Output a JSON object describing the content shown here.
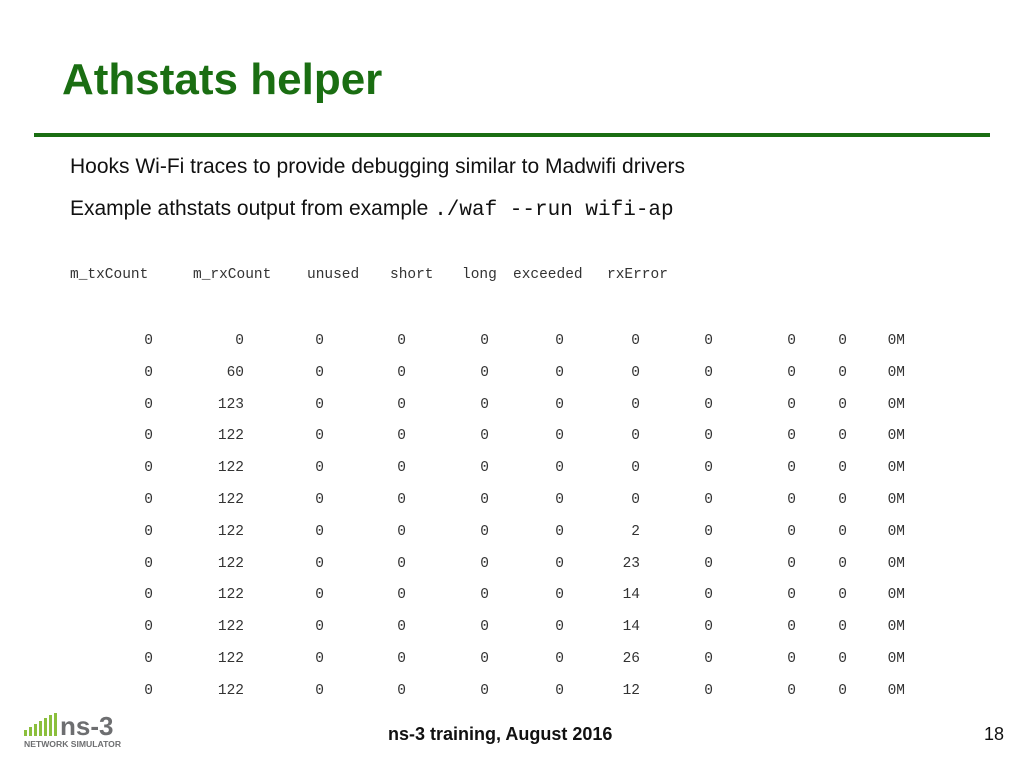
{
  "slide": {
    "title": "Athstats helper",
    "bullet1": "Hooks Wi-Fi traces to provide debugging similar to Madwifi drivers",
    "bullet2_text": "Example athstats output from example ",
    "bullet2_code": "./waf --run wifi-ap",
    "footer": "ns-3 training, August 2016",
    "page_number": "18"
  },
  "logo": {
    "name": "ns-3",
    "subtitle": "NETWORK SIMULATOR"
  },
  "output_header": [
    "m_txCount",
    "m_rxCount",
    "unused",
    "short",
    "long",
    "exceeded",
    "rxError"
  ],
  "output_rows": [
    [
      "0",
      "0",
      "0",
      "0",
      "0",
      "0",
      "0",
      "0",
      "0",
      "0",
      "0M"
    ],
    [
      "0",
      "60",
      "0",
      "0",
      "0",
      "0",
      "0",
      "0",
      "0",
      "0",
      "0M"
    ],
    [
      "0",
      "123",
      "0",
      "0",
      "0",
      "0",
      "0",
      "0",
      "0",
      "0",
      "0M"
    ],
    [
      "0",
      "122",
      "0",
      "0",
      "0",
      "0",
      "0",
      "0",
      "0",
      "0",
      "0M"
    ],
    [
      "0",
      "122",
      "0",
      "0",
      "0",
      "0",
      "0",
      "0",
      "0",
      "0",
      "0M"
    ],
    [
      "0",
      "122",
      "0",
      "0",
      "0",
      "0",
      "0",
      "0",
      "0",
      "0",
      "0M"
    ],
    [
      "0",
      "122",
      "0",
      "0",
      "0",
      "0",
      "2",
      "0",
      "0",
      "0",
      "0M"
    ],
    [
      "0",
      "122",
      "0",
      "0",
      "0",
      "0",
      "23",
      "0",
      "0",
      "0",
      "0M"
    ],
    [
      "0",
      "122",
      "0",
      "0",
      "0",
      "0",
      "14",
      "0",
      "0",
      "0",
      "0M"
    ],
    [
      "0",
      "122",
      "0",
      "0",
      "0",
      "0",
      "14",
      "0",
      "0",
      "0",
      "0M"
    ],
    [
      "0",
      "122",
      "0",
      "0",
      "0",
      "0",
      "26",
      "0",
      "0",
      "0",
      "0M"
    ],
    [
      "0",
      "122",
      "0",
      "0",
      "0",
      "0",
      "12",
      "0",
      "0",
      "0",
      "0M"
    ]
  ],
  "colors": {
    "title_green": "#1a6e12",
    "logo_green": "#8bbf3c",
    "logo_gray": "#6d6e70"
  }
}
